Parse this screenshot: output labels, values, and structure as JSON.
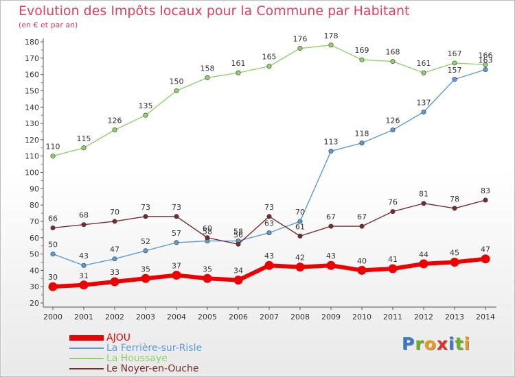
{
  "title": "Evolution des Impôts locaux pour la Commune par Habitant",
  "subtitle": "(en € et par an)",
  "brand": {
    "letters": [
      {
        "ch": "P",
        "color": "#3c78c8"
      },
      {
        "ch": "r",
        "color": "#6aae2e"
      },
      {
        "ch": "o",
        "color": "#e89a1c"
      },
      {
        "ch": "x",
        "color": "#d8322c"
      },
      {
        "ch": "i",
        "color": "#3c78c8"
      },
      {
        "ch": "t",
        "color": "#6aae2e"
      },
      {
        "ch": "i",
        "color": "#e89a1c"
      }
    ]
  },
  "chart_data": {
    "type": "line",
    "x": [
      2000,
      2001,
      2002,
      2003,
      2004,
      2005,
      2006,
      2007,
      2008,
      2009,
      2010,
      2011,
      2012,
      2013,
      2014
    ],
    "ylim": [
      20,
      180
    ],
    "yticks": [
      20,
      30,
      40,
      50,
      60,
      70,
      80,
      90,
      100,
      110,
      120,
      130,
      140,
      150,
      160,
      170,
      180
    ],
    "grid": false,
    "legend_position": "bottom-left",
    "series": [
      {
        "name": "AJOU",
        "color": "#ee0000",
        "values": [
          30,
          31,
          33,
          35,
          37,
          35,
          34,
          43,
          42,
          43,
          40,
          41,
          44,
          45,
          47
        ]
      },
      {
        "name": "La Ferrière-sur-Risle",
        "color": "#5b9bd5",
        "values": [
          50,
          43,
          47,
          52,
          57,
          58,
          58,
          63,
          70,
          113,
          118,
          126,
          137,
          157,
          163
        ]
      },
      {
        "name": "La Houssaye",
        "color": "#8fd16a",
        "values": [
          110,
          115,
          126,
          135,
          150,
          158,
          161,
          165,
          176,
          178,
          169,
          168,
          161,
          167,
          166
        ]
      },
      {
        "name": "Le Noyer-en-Ouche",
        "color": "#7a2a2a",
        "values": [
          66,
          68,
          70,
          73,
          73,
          60,
          56,
          73,
          61,
          67,
          67,
          76,
          81,
          78,
          83
        ]
      }
    ]
  }
}
